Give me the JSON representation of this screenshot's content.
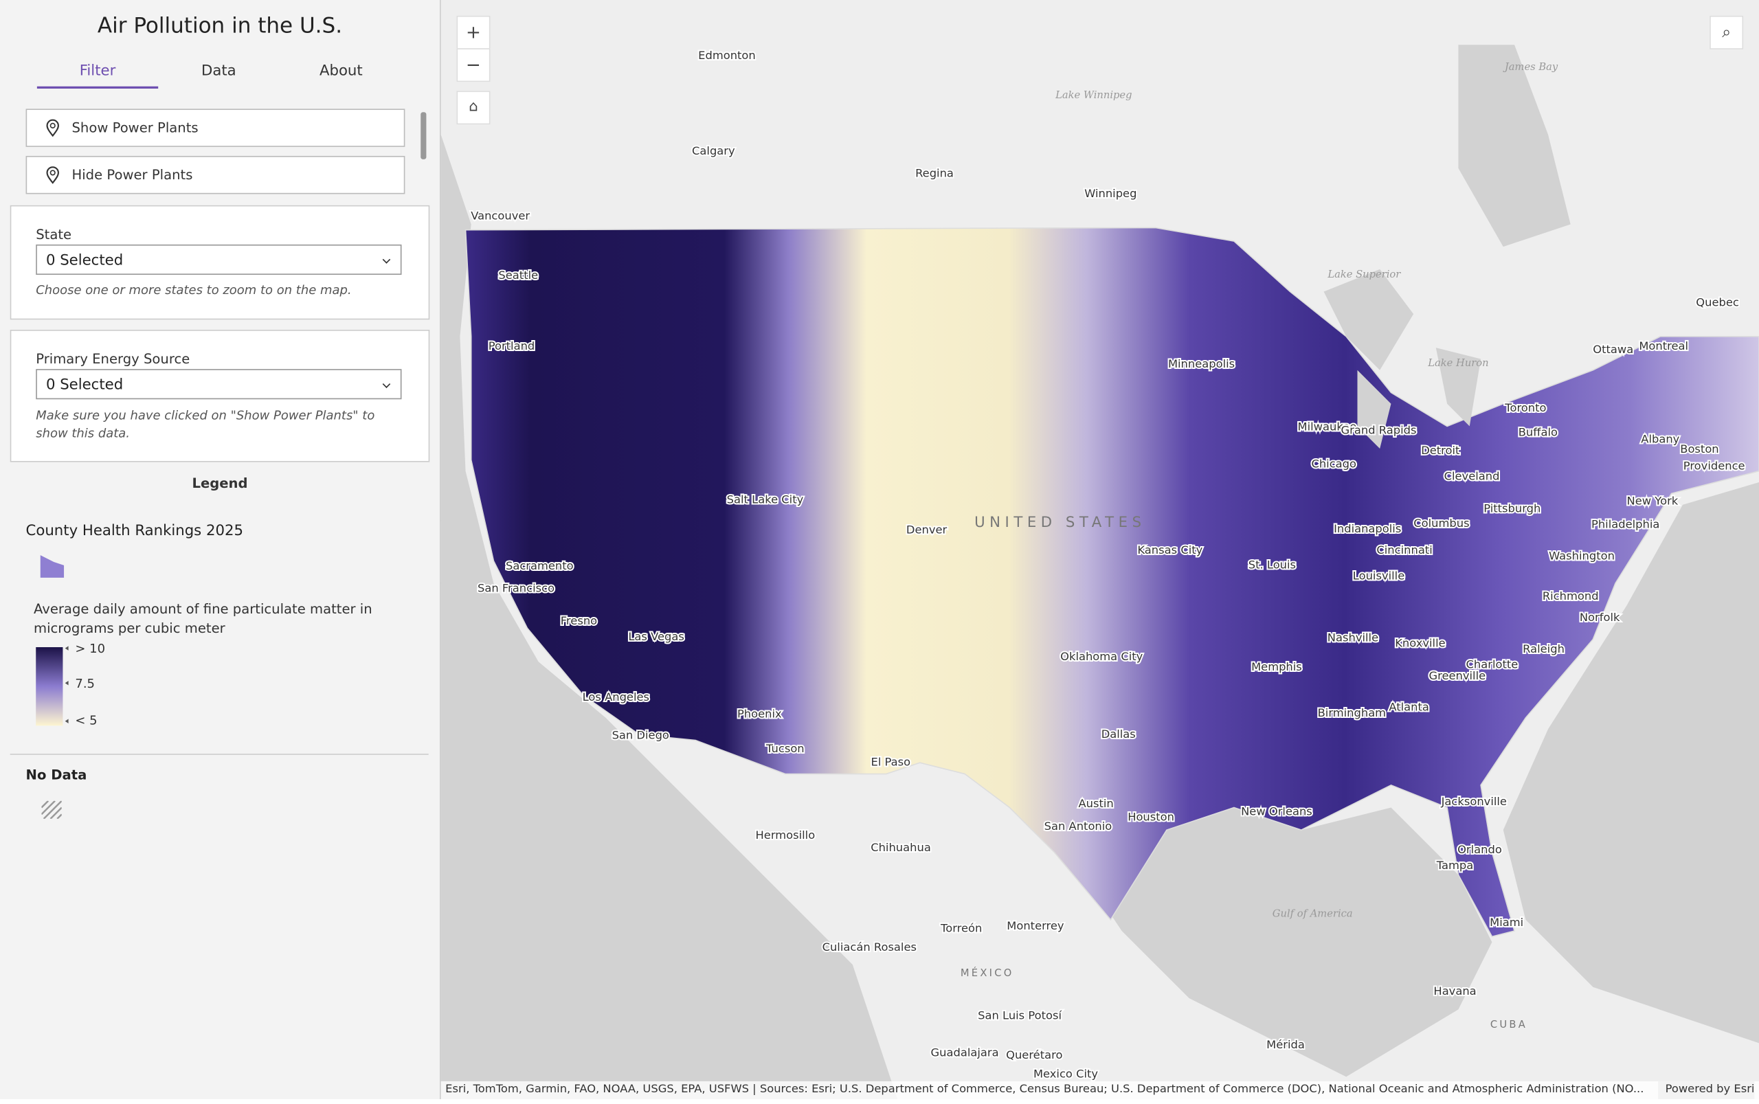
{
  "header": {
    "title": "Air Pollution in the U.S."
  },
  "tabs": [
    "Filter",
    "Data",
    "About"
  ],
  "buttons": [
    "Show Power Plants",
    "Hide Power Plants"
  ],
  "filters": [
    {
      "label": "State",
      "value": "0 Selected",
      "hint": "Choose one or more states to zoom to on the map."
    },
    {
      "label": "Primary Energy Source",
      "value": "0 Selected",
      "hint": "Make sure you have clicked on \"Show Power Plants\" to show this data."
    }
  ],
  "legend": {
    "heading": "Legend",
    "layer_title": "County Health Rankings 2025",
    "description": "Average daily amount of fine particulate matter in micrograms per cubic meter",
    "stops": [
      "> 10",
      "7.5",
      "< 5"
    ],
    "no_data": "No Data"
  },
  "map": {
    "labels": [
      "Edmonton",
      "Calgary",
      "Regina",
      "Winnipeg",
      "Vancouver",
      "Seattle",
      "Portland",
      "Minneapolis",
      "Quebec",
      "Ottawa",
      "Montreal",
      "Toronto",
      "Buffalo",
      "Albany",
      "Boston",
      "Providence",
      "Milwaukee",
      "Grand Rapids",
      "Detroit",
      "Chicago",
      "Cleveland",
      "New York",
      "Pittsburgh",
      "Philadelphia",
      "Salt Lake City",
      "Denver",
      "Kansas City",
      "Indianapolis",
      "Columbus",
      "Cincinnati",
      "St. Louis",
      "Washington",
      "Louisville",
      "Sacramento",
      "San Francisco",
      "Richmond",
      "Nashville",
      "Knoxville",
      "Raleigh",
      "Las Vegas",
      "Oklahoma City",
      "Memphis",
      "Charlotte",
      "Greenville",
      "Fresno",
      "Los Angeles",
      "Birmingham",
      "Atlanta",
      "Phoenix",
      "San Diego",
      "Dallas",
      "Tucson",
      "El Paso",
      "Jacksonville",
      "Austin",
      "Houston",
      "New Orleans",
      "San Antonio",
      "Orlando",
      "Tampa",
      "Miami",
      "Hermosillo",
      "Chihuahua",
      "Torreón",
      "Monterrey",
      "Culiacán Rosales",
      "San Luis Potosí",
      "Havana",
      "Mérida",
      "Guadalajara",
      "Querétaro",
      "Mexico City",
      "Norfolk"
    ],
    "regions": [
      "UNITED STATES",
      "MÉXICO",
      "CUBA"
    ],
    "water": [
      "James Bay",
      "Lake Winnipeg",
      "Lake Superior",
      "Lake Huron",
      "Gulf of America"
    ],
    "attribution": "Esri, TomTom, Garmin, FAO, NOAA, USGS, EPA, USFWS | Sources: Esri; U.S. Department of Commerce, Census Bureau; U.S. Department of Commerce (DOC), National Oceanic and Atmospheric Administration (NO...",
    "powered_by": "Powered by Esri"
  }
}
